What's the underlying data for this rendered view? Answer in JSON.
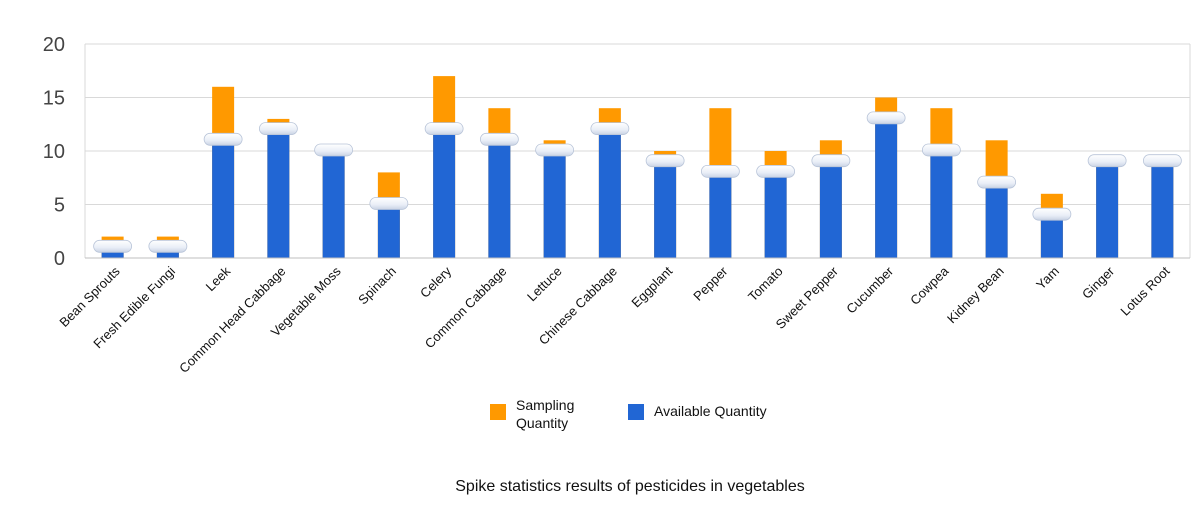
{
  "chart_data": {
    "type": "bar",
    "caption": "Spike statistics results of pesticides in vegetables",
    "categories": [
      "Bean Sprouts",
      "Fresh Edible Fungi",
      "Leek",
      "Common Head Cabbage",
      "Vegetable Moss",
      "Spinach",
      "Celery",
      "Common Cabbage",
      "Lettuce",
      "Chinese Cabbage",
      "Eggplant",
      "Pepper",
      "Tomato",
      "Sweet Pepper",
      "Cucumber",
      "Cowpea",
      "Kidney Bean",
      "Yam",
      "Ginger",
      "Lotus Root"
    ],
    "series": [
      {
        "name": "Sampling Quantity",
        "color": "#ff9900",
        "values": [
          2,
          2,
          16,
          13,
          10,
          8,
          17,
          14,
          11,
          14,
          10,
          14,
          10,
          11,
          15,
          14,
          11,
          6,
          9,
          9
        ]
      },
      {
        "name": "Available Quantity",
        "color": "#2166d4",
        "values": [
          1,
          1,
          11,
          12,
          10,
          5,
          12,
          11,
          10,
          12,
          9,
          8,
          8,
          9,
          13,
          10,
          7,
          4,
          9,
          9
        ]
      }
    ],
    "ylim": [
      0,
      20
    ],
    "yticks": [
      0,
      5,
      10,
      15,
      20
    ],
    "grid": true,
    "legend_position": "bottom"
  },
  "legend": {
    "sampling_line1": "Sampling",
    "sampling_line2": "Quantity",
    "available": "Available Quantity"
  }
}
